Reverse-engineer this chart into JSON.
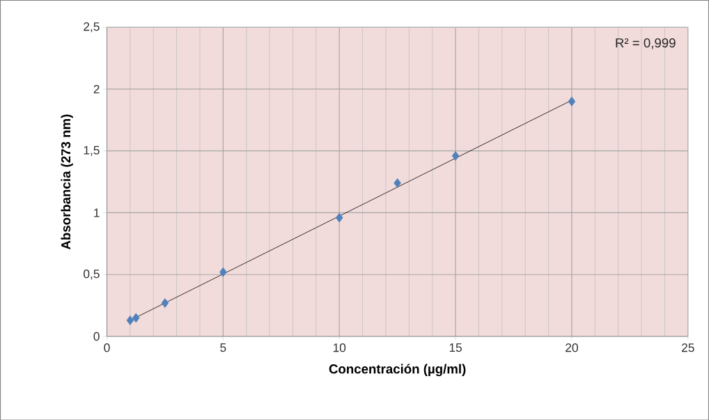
{
  "chart_data": {
    "type": "scatter",
    "xlabel": "Concentración (µg/ml)",
    "ylabel": "Absorbancia (273 nm)",
    "annotations": [
      "R² = 0,999"
    ],
    "x": [
      1,
      1.25,
      2.5,
      5,
      10,
      12.5,
      15,
      20
    ],
    "series": [
      {
        "color": "#4f81bd",
        "values": [
          0.13,
          0.15,
          0.27,
          0.52,
          0.96,
          1.24,
          1.46,
          1.9
        ],
        "marker": "diamond"
      },
      {
        "type": "line",
        "color": "#000000",
        "x": [
          1,
          20
        ],
        "values": [
          0.13,
          1.91
        ],
        "marker": "none"
      }
    ],
    "xlim": [
      0,
      25
    ],
    "ylim": [
      0,
      2.5
    ],
    "xticks": [
      0,
      5,
      10,
      15,
      20,
      25
    ],
    "yticks": [
      0,
      {
        "value": 0.5,
        "label": "0,5"
      },
      1,
      {
        "value": 1.5,
        "label": "1,5"
      },
      2,
      {
        "value": 2.5,
        "label": "2,5"
      }
    ],
    "grid": true
  }
}
